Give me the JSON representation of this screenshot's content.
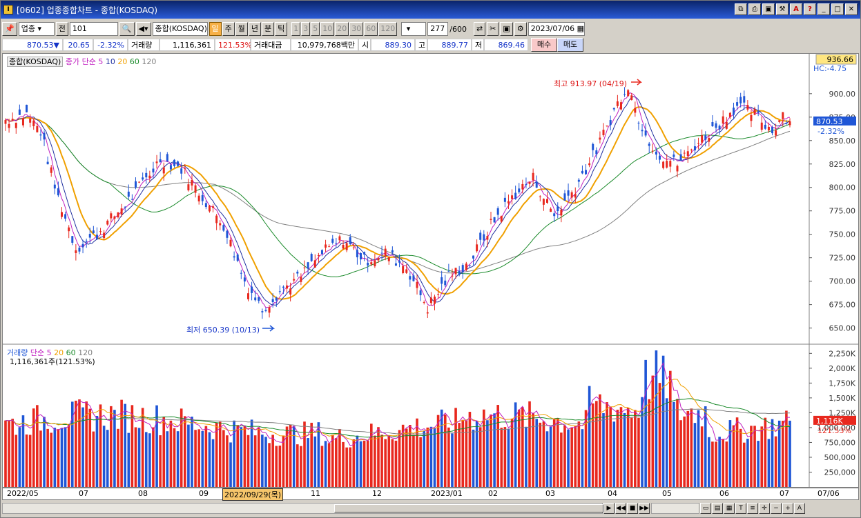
{
  "window": {
    "title": "[0602] 업종종합차트 - 종합(KOSDAQ)",
    "app_icon": "I"
  },
  "toolbar": {
    "category": "업종",
    "prefix": "전",
    "code": "101",
    "index_name": "종합(KOSDAQ)",
    "periods": [
      "일",
      "주",
      "월",
      "년",
      "분",
      "틱"
    ],
    "active_period": "일",
    "intervals": [
      "1",
      "3",
      "5",
      "10",
      "20",
      "30",
      "60",
      "120"
    ],
    "count": "277",
    "count_total": "/600",
    "date": "2023/07/06"
  },
  "quote": {
    "price": "870.53",
    "arrow": "▼",
    "change": "20.65",
    "change_pct": "-2.32%",
    "volume_label": "거래량",
    "volume": "1,116,361",
    "volume_ratio": "121.53%",
    "amount_label": "거래대금",
    "amount": "10,979,768백만",
    "open_label": "시",
    "open": "889.30",
    "high_label": "고",
    "high": "889.77",
    "low_label": "저",
    "low": "869.46",
    "buy_label": "매수",
    "sell_label": "매도"
  },
  "price_legend": {
    "name": "종합(KOSDAQ)",
    "ma_label": "종가 단순",
    "periods": [
      "5",
      "10",
      "20",
      "60",
      "120"
    ]
  },
  "volume_legend": {
    "name": "거래량",
    "ma_label": "단순",
    "periods": [
      "5",
      "20",
      "60",
      "120"
    ],
    "value_line": "1,116,361주(121.53%)"
  },
  "annotations": {
    "high": "최고 913.97 (04/19)",
    "low": "최저 650.39 (10/13)"
  },
  "price_axis": {
    "top_value": "936.66",
    "hc_label": "HC:-4.75",
    "last_value": "870.53",
    "last_pct": "-2.32%",
    "ticks": [
      "900.00",
      "875.00",
      "850.00",
      "825.00",
      "800.00",
      "775.00",
      "750.00",
      "725.00",
      "700.00",
      "675.00",
      "650.00"
    ]
  },
  "volume_axis": {
    "last_value": "1,116K",
    "last_pct": "121.53%",
    "ticks": [
      "2,250K",
      "2,000K",
      "1,750K",
      "1,500K",
      "1,250K",
      "1,000,000",
      "750,000",
      "500,000",
      "250,000"
    ]
  },
  "time_axis": {
    "labels": [
      "2022/05",
      "07",
      "08",
      "09",
      "2022/09/29(목)",
      "11",
      "12",
      "2023/01",
      "02",
      "03",
      "04",
      "05",
      "06",
      "07",
      "07/06"
    ]
  },
  "colors": {
    "up": "#e8281e",
    "down": "#1f56d6",
    "ma5": "#c020c0",
    "ma10": "#2030a0",
    "ma20": "#f0a000",
    "ma60": "#1a8a2a",
    "ma120": "#808080"
  },
  "chart_data": [
    {
      "type": "candlestick",
      "title": "종합(KOSDAQ)",
      "x_range": [
        "2022/05",
        "2023/07/06"
      ],
      "ylim": [
        635,
        936.66
      ],
      "high": {
        "date": "04/19",
        "value": 913.97
      },
      "low": {
        "date": "10/13",
        "value": 650.39
      },
      "last": {
        "close": 870.53,
        "open": 889.3,
        "high": 889.77,
        "low": 869.46,
        "change": -20.65,
        "change_pct": -2.32
      },
      "monthly_close_approx": {
        "x": [
          "2022/05",
          "06",
          "07",
          "08",
          "09",
          "10",
          "11",
          "12",
          "2023/01",
          "02",
          "03",
          "04",
          "05",
          "06",
          "07"
        ],
        "values": [
          870,
          740,
          780,
          830,
          760,
          690,
          740,
          700,
          680,
          760,
          800,
          890,
          830,
          875,
          870
        ]
      }
    },
    {
      "type": "bar",
      "title": "거래량",
      "ylim": [
        0,
        2300000
      ],
      "last": {
        "value": 1116361,
        "ratio_pct": 121.53
      }
    }
  ]
}
